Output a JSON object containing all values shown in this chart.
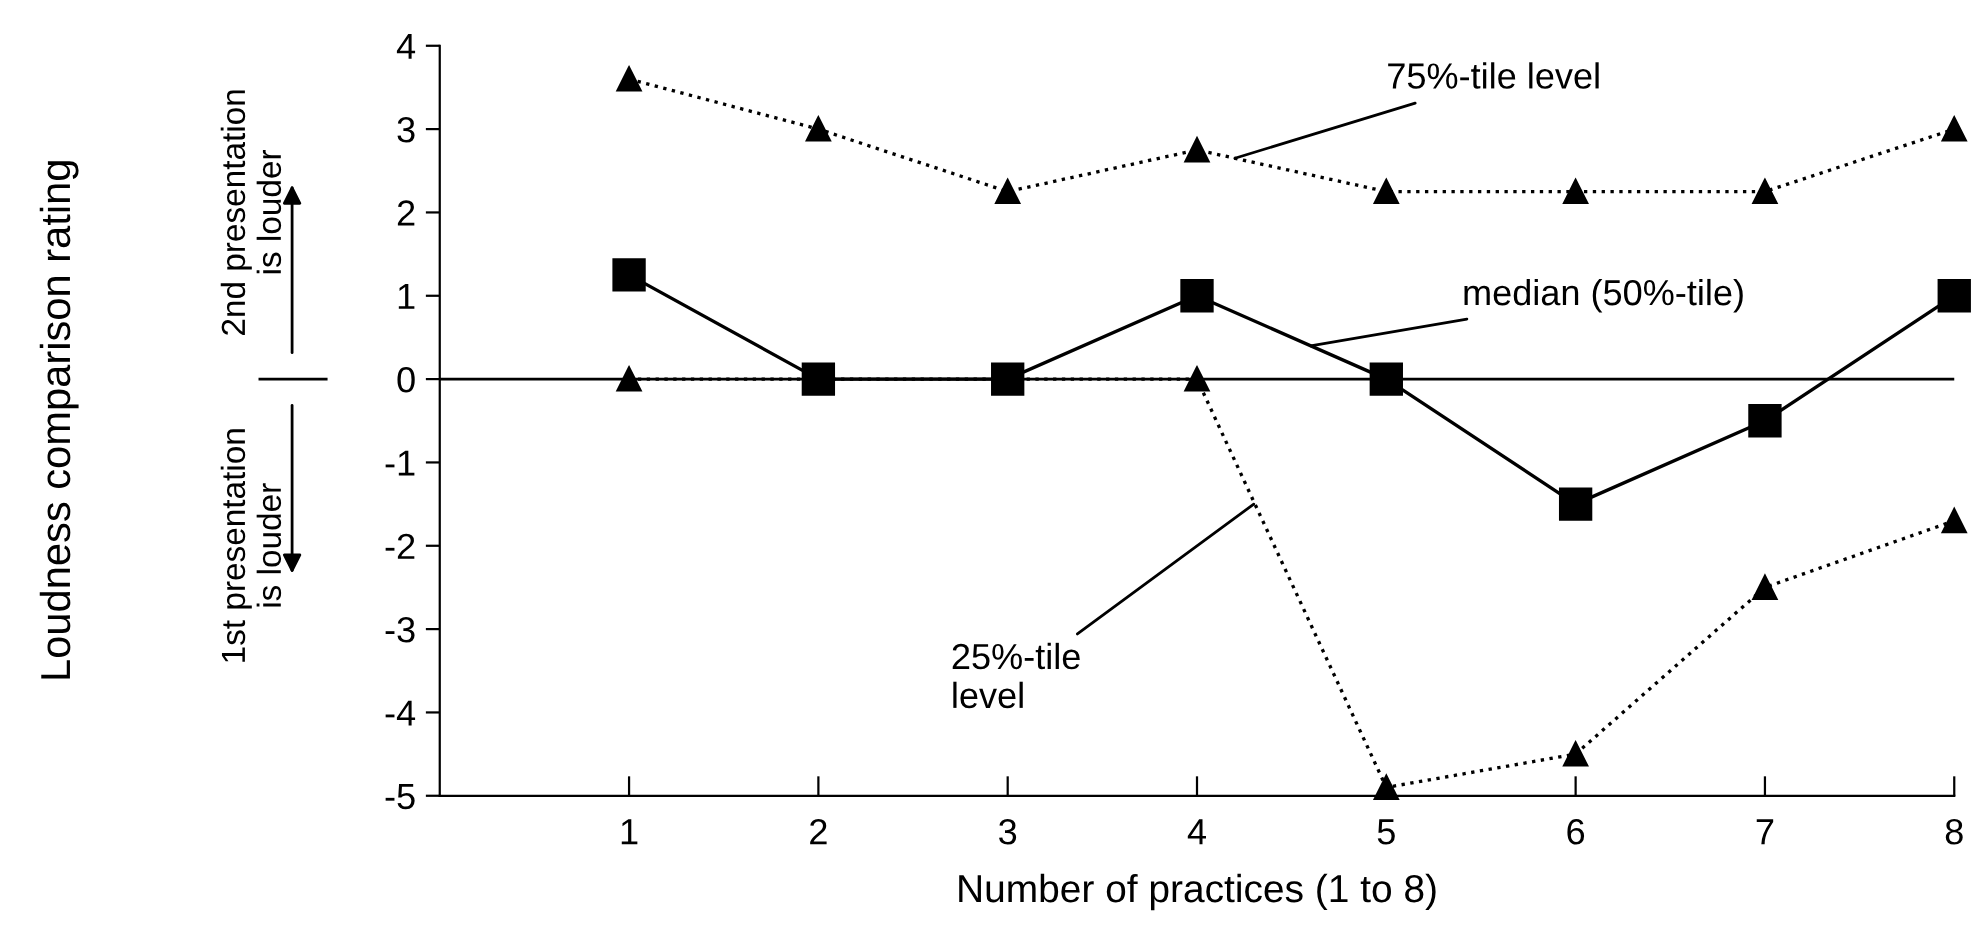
{
  "chart_data": {
    "type": "line",
    "xlabel": "Number of practices (1 to 8)",
    "x": [
      1,
      2,
      3,
      4,
      5,
      6,
      7,
      8
    ],
    "series": [
      {
        "color": "#000000",
        "marker": "triangle",
        "line_style": "dotted",
        "values": [
          3.6,
          3.0,
          2.25,
          2.75,
          2.25,
          2.25,
          2.25,
          3.0
        ]
      },
      {
        "color": "#000000",
        "marker": "square",
        "line_style": "solid",
        "values": [
          1.25,
          0,
          0,
          1,
          0,
          -1.5,
          -0.5,
          1
        ]
      },
      {
        "color": "#000000",
        "marker": "triangle",
        "line_style": "dotted",
        "values": [
          0,
          0,
          0,
          0,
          -4.9,
          -4.5,
          -2.5,
          -1.7
        ]
      }
    ],
    "xlim": [
      0,
      8
    ],
    "xticks": [
      1,
      2,
      3,
      4,
      5,
      6,
      7,
      8
    ],
    "ylim": [
      -5,
      4
    ],
    "yticks": [
      -5,
      -4,
      -3,
      -2,
      -1,
      0,
      1,
      2,
      3,
      4
    ],
    "ref_lines": [
      {
        "axis": "y",
        "value": 0,
        "color": "#000000"
      }
    ],
    "grid": false,
    "legend": false,
    "annotations": [
      {
        "text": "75%-tile level",
        "x": 4.2,
        "y": 2.65
      },
      {
        "text": "median (50%-tile)",
        "x": 4.6,
        "y": 0.4
      },
      {
        "text": "25%-tile\nlevel",
        "x": 4.3,
        "y": -1.5
      },
      "Loudness comparison rating",
      "2nd presentation\nis louder",
      "1st presentation\nis louder"
    ]
  }
}
